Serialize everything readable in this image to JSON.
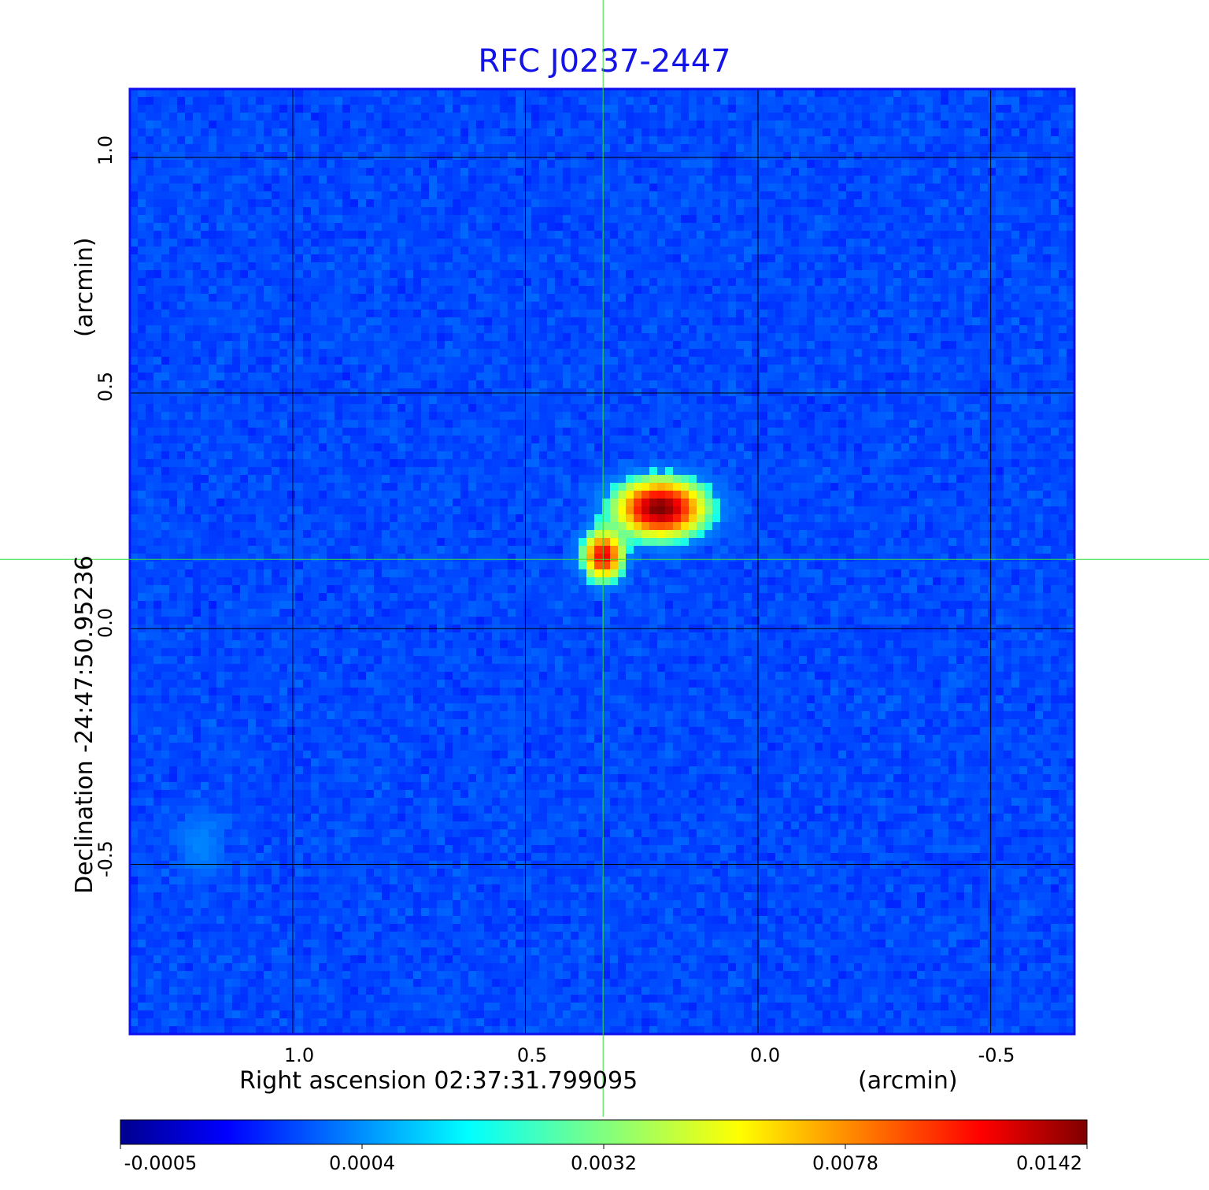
{
  "chart_data": {
    "type": "heatmap",
    "title": "RFC J0237-2447",
    "xlabel": "Right ascension  02:37:31.799095",
    "xunit": "(arcmin)",
    "ylabel": "Declination  -24:47:50.95236",
    "yunit": "(arcmin)",
    "xlim": [
      1.35,
      -0.68
    ],
    "ylim": [
      -0.86,
      1.145
    ],
    "xticks": [
      "1.0",
      "0.5",
      "0.0",
      "-0.5"
    ],
    "xtick_values": [
      1.0,
      0.5,
      0.0,
      -0.5
    ],
    "yticks": [
      "1.0",
      "0.5",
      "0.0",
      "-0.5"
    ],
    "ytick_values": [
      1.0,
      0.5,
      0.0,
      -0.5
    ],
    "grid": true,
    "crosshair": {
      "x": 0.333,
      "y": 0.147,
      "color": "#33dd33"
    },
    "colormap": "jet",
    "colorbar": {
      "ticks": [
        "-0.0005",
        "0.0004",
        "0.0032",
        "0.0078",
        "0.0142"
      ],
      "tick_values": [
        -0.0005,
        0.0004,
        0.0032,
        0.0078,
        0.0142
      ],
      "orientation": "horizontal",
      "placement": "bottom"
    },
    "background_level": 0.0002,
    "sources": [
      {
        "x": 0.21,
        "y": 0.255,
        "peak": 0.0142,
        "sigma_x": 0.055,
        "sigma_y": 0.035
      },
      {
        "x": 0.333,
        "y": 0.155,
        "peak": 0.011,
        "sigma_x": 0.025,
        "sigma_y": 0.03
      },
      {
        "x": 1.2,
        "y": -0.455,
        "peak": 0.0009,
        "sigma_x": 0.03,
        "sigma_y": 0.04
      }
    ],
    "colors": {
      "title": "#1414e6",
      "frame": "#1010ee",
      "grid": "#000000"
    }
  }
}
